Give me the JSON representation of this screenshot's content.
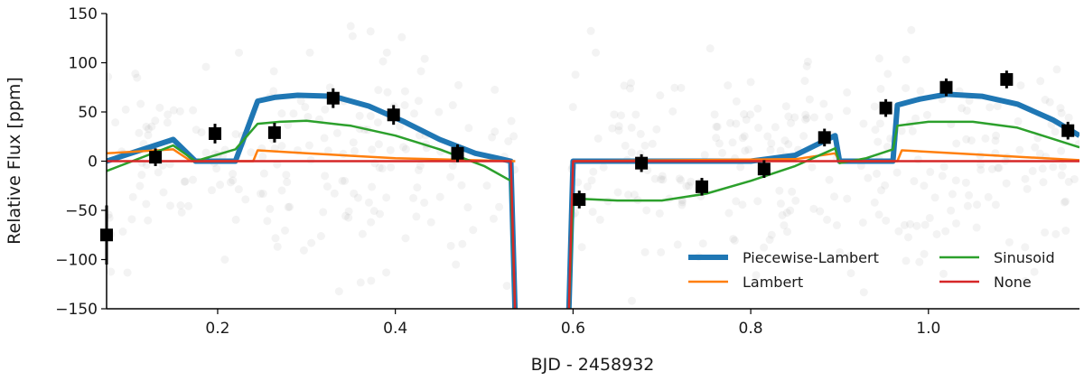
{
  "chart_data": {
    "type": "line",
    "xlabel": "BJD - 2458932",
    "ylabel": "Relative Flux [ppm]",
    "xlim": [
      0.075,
      1.17
    ],
    "ylim": [
      -150,
      150
    ],
    "x_ticks": [
      0.2,
      0.4,
      0.6,
      0.8,
      1.0
    ],
    "x_tick_labels": [
      "0.2",
      "0.4",
      "0.6",
      "0.8",
      "1.0"
    ],
    "y_ticks": [
      -150,
      -100,
      -50,
      0,
      50,
      100,
      150
    ],
    "y_tick_labels": [
      "−150",
      "−100",
      "−50",
      "0",
      "50",
      "100",
      "150"
    ],
    "grid": false,
    "legend_position": "lower-right",
    "series": [
      {
        "name": "Piecewise-Lambert",
        "color": "#1f77b4",
        "points": [
          [
            0.075,
            0
          ],
          [
            0.15,
            22
          ],
          [
            0.175,
            0
          ],
          [
            0.22,
            0
          ],
          [
            0.245,
            61
          ],
          [
            0.265,
            65
          ],
          [
            0.29,
            67
          ],
          [
            0.33,
            66
          ],
          [
            0.37,
            56
          ],
          [
            0.41,
            40
          ],
          [
            0.45,
            22
          ],
          [
            0.49,
            8
          ],
          [
            0.515,
            3
          ],
          [
            0.53,
            0
          ],
          [
            0.535,
            -160
          ],
          [
            null,
            null
          ],
          [
            0.595,
            -160
          ],
          [
            0.6,
            0
          ],
          [
            0.7,
            0
          ],
          [
            0.8,
            0
          ],
          [
            0.85,
            6
          ],
          [
            0.895,
            26
          ],
          [
            0.9,
            0
          ],
          [
            0.96,
            0
          ],
          [
            0.965,
            57
          ],
          [
            0.99,
            63
          ],
          [
            1.02,
            68
          ],
          [
            1.06,
            66
          ],
          [
            1.1,
            58
          ],
          [
            1.14,
            42
          ],
          [
            1.17,
            26
          ]
        ]
      },
      {
        "name": "Lambert",
        "color": "#ff7f0e",
        "points": [
          [
            0.075,
            8
          ],
          [
            0.15,
            12
          ],
          [
            0.17,
            0
          ],
          [
            0.24,
            0
          ],
          [
            0.245,
            11
          ],
          [
            0.3,
            8
          ],
          [
            0.4,
            3
          ],
          [
            0.53,
            0
          ],
          [
            0.535,
            0
          ],
          [
            null,
            null
          ],
          [
            0.6,
            0
          ],
          [
            0.85,
            2
          ],
          [
            0.895,
            8
          ],
          [
            0.9,
            0
          ],
          [
            0.965,
            0
          ],
          [
            0.97,
            11
          ],
          [
            1.05,
            7
          ],
          [
            1.17,
            1
          ]
        ]
      },
      {
        "name": "Sinusoid",
        "color": "#2ca02c",
        "points": [
          [
            0.075,
            -10
          ],
          [
            0.15,
            16
          ],
          [
            0.175,
            0
          ],
          [
            0.22,
            12
          ],
          [
            0.245,
            38
          ],
          [
            0.27,
            40
          ],
          [
            0.3,
            41
          ],
          [
            0.35,
            36
          ],
          [
            0.4,
            26
          ],
          [
            0.45,
            12
          ],
          [
            0.5,
            -5
          ],
          [
            0.53,
            -20
          ],
          [
            0.535,
            -160
          ],
          [
            null,
            null
          ],
          [
            0.595,
            -160
          ],
          [
            0.6,
            -38
          ],
          [
            0.65,
            -40
          ],
          [
            0.7,
            -40
          ],
          [
            0.75,
            -33
          ],
          [
            0.8,
            -20
          ],
          [
            0.85,
            -5
          ],
          [
            0.895,
            13
          ],
          [
            0.9,
            -2
          ],
          [
            0.93,
            3
          ],
          [
            0.96,
            12
          ],
          [
            0.965,
            36
          ],
          [
            1.0,
            40
          ],
          [
            1.05,
            40
          ],
          [
            1.1,
            34
          ],
          [
            1.17,
            14
          ]
        ]
      },
      {
        "name": "None",
        "color": "#d62728",
        "points": [
          [
            0.075,
            0
          ],
          [
            0.53,
            0
          ],
          [
            0.535,
            -160
          ],
          [
            null,
            null
          ],
          [
            0.595,
            -160
          ],
          [
            0.6,
            0
          ],
          [
            1.17,
            0
          ]
        ]
      }
    ],
    "binned_data": {
      "name": "binned",
      "color": "#000000",
      "x": [
        0.075,
        0.13,
        0.197,
        0.264,
        0.33,
        0.398,
        0.47,
        0.607,
        0.677,
        0.745,
        0.815,
        0.883,
        0.952,
        1.02,
        1.088,
        1.157
      ],
      "y": [
        -75,
        4,
        28,
        29,
        64,
        47,
        8,
        -39,
        -2,
        -26,
        -8,
        24,
        54,
        75,
        83,
        31
      ],
      "yerr": [
        30,
        9,
        10,
        10,
        10,
        10,
        9,
        9,
        9,
        9,
        9,
        9,
        9,
        9,
        9,
        9
      ]
    },
    "raw_data": {
      "color": "#9e9e9e",
      "note_marker": "faint grey scatter"
    }
  }
}
